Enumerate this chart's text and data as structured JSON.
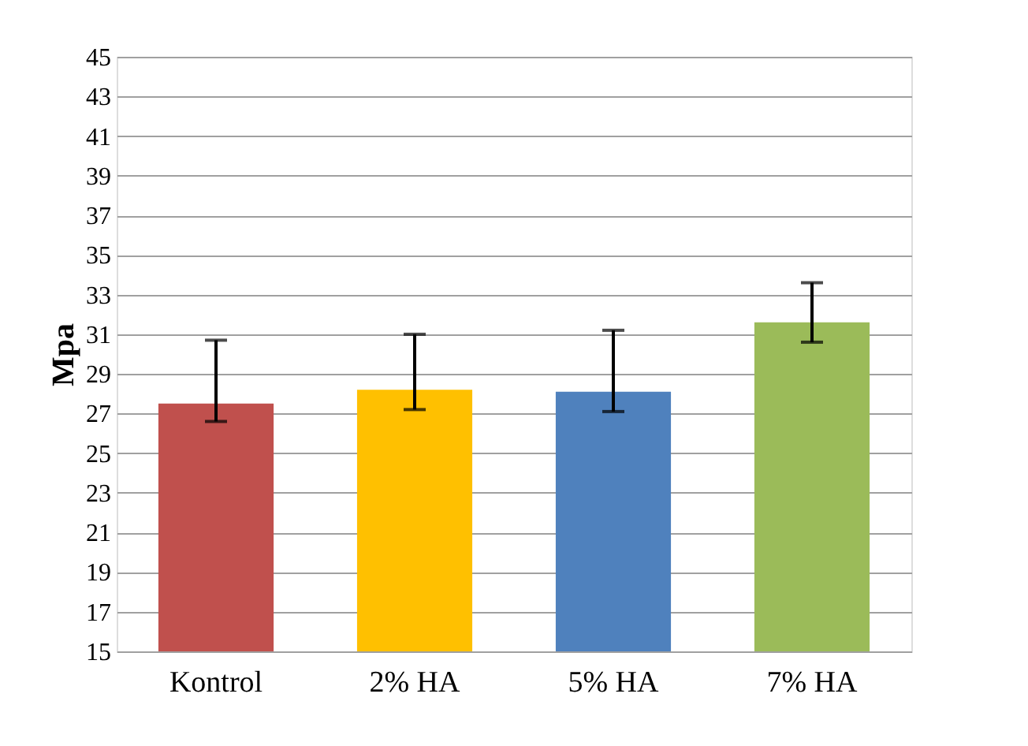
{
  "chart_data": {
    "type": "bar",
    "ylabel": "Mpa",
    "categories": [
      "Kontrol",
      "2% HA",
      "5% HA",
      "7% HA"
    ],
    "values": [
      27.5,
      28.2,
      28.1,
      31.6
    ],
    "colors": [
      "#c0504d",
      "#ffc000",
      "#4f81bd",
      "#9bbb59"
    ],
    "errors": [
      [
        26.6,
        30.7
      ],
      [
        27.2,
        31.0
      ],
      [
        27.1,
        31.2
      ],
      [
        30.6,
        33.6
      ]
    ],
    "ylim": [
      15,
      45
    ],
    "yticks": [
      15,
      17,
      19,
      21,
      23,
      25,
      27,
      29,
      31,
      33,
      35,
      37,
      39,
      41,
      43,
      45
    ],
    "grid": "y"
  }
}
